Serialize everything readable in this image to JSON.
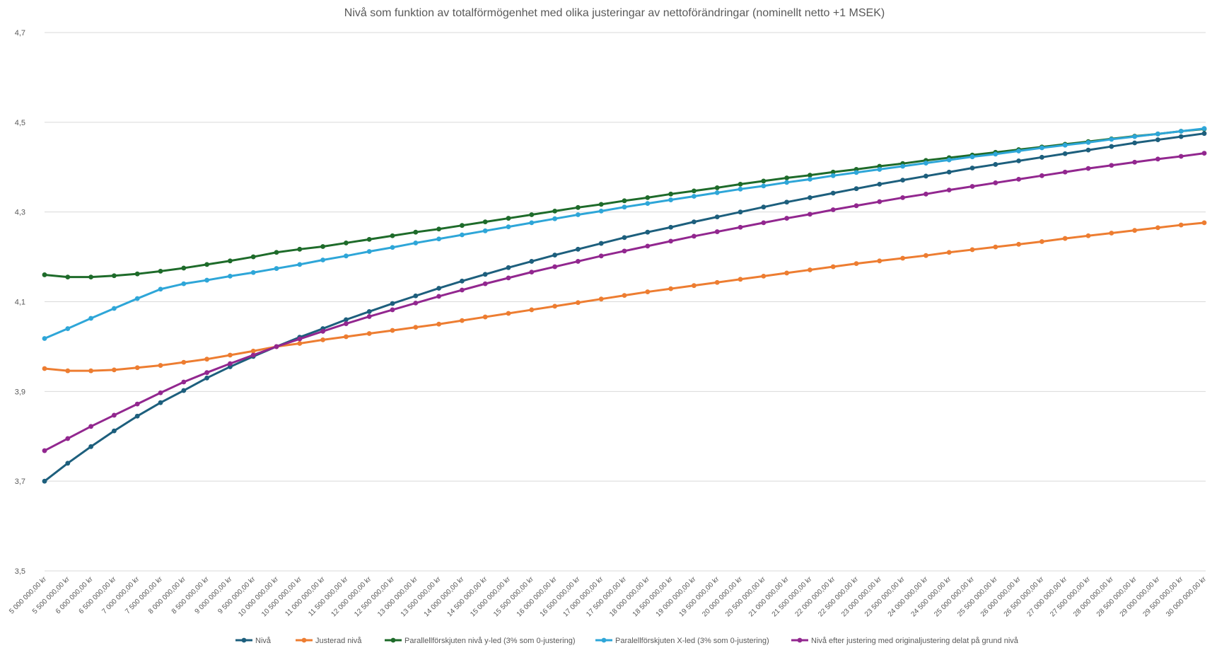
{
  "chart_data": {
    "type": "line",
    "title": "Nivå som funktion av totalförmögenhet med olika justeringar av nettoförändringar (nominellt netto +1 MSEK)",
    "ylim": [
      3.5,
      4.7
    ],
    "yticks": [
      "3,5",
      "3,7",
      "3,9",
      "4,1",
      "4,3",
      "4,5",
      "4,7"
    ],
    "ytick_values": [
      3.5,
      3.7,
      3.9,
      4.1,
      4.3,
      4.5,
      4.7
    ],
    "grid": true,
    "legend_position": "bottom",
    "categories": [
      "5 000 000,00 kr",
      "5 500 000,00 kr",
      "6 000 000,00 kr",
      "6 500 000,00 kr",
      "7 000 000,00 kr",
      "7 500 000,00 kr",
      "8 000 000,00 kr",
      "8 500 000,00 kr",
      "9 000 000,00 kr",
      "9 500 000,00 kr",
      "10 000 000,00 kr",
      "10 500 000,00 kr",
      "11 000 000,00 kr",
      "11 500 000,00 kr",
      "12 000 000,00 kr",
      "12 500 000,00 kr",
      "13 000 000,00 kr",
      "13 500 000,00 kr",
      "14 000 000,00 kr",
      "14 500 000,00 kr",
      "15 000 000,00 kr",
      "15 500 000,00 kr",
      "16 000 000,00 kr",
      "16 500 000,00 kr",
      "17 000 000,00 kr",
      "17 500 000,00 kr",
      "18 000 000,00 kr",
      "18 500 000,00 kr",
      "19 000 000,00 kr",
      "19 500 000,00 kr",
      "20 000 000,00 kr",
      "20 500 000,00 kr",
      "21 000 000,00 kr",
      "21 500 000,00 kr",
      "22 000 000,00 kr",
      "22 500 000,00 kr",
      "23 000 000,00 kr",
      "23 500 000,00 kr",
      "24 000 000,00 kr",
      "24 500 000,00 kr",
      "25 000 000,00 kr",
      "25 500 000,00 kr",
      "26 000 000,00 kr",
      "26 500 000,00 kr",
      "27 000 000,00 kr",
      "27 500 000,00 kr",
      "28 000 000,00 kr",
      "28 500 000,00 kr",
      "29 000 000,00 kr",
      "29 500 000,00 kr",
      "30 000 000,00 kr"
    ],
    "series": [
      {
        "name": "Nivå",
        "color": "#1d5f7d",
        "values": [
          3.7,
          3.74,
          3.777,
          3.812,
          3.845,
          3.875,
          3.902,
          3.93,
          3.955,
          3.978,
          4.0,
          4.021,
          4.04,
          4.06,
          4.078,
          4.096,
          4.113,
          4.13,
          4.146,
          4.161,
          4.176,
          4.19,
          4.204,
          4.217,
          4.23,
          4.243,
          4.255,
          4.266,
          4.278,
          4.289,
          4.3,
          4.311,
          4.322,
          4.332,
          4.342,
          4.352,
          4.362,
          4.371,
          4.38,
          4.389,
          4.398,
          4.406,
          4.414,
          4.422,
          4.43,
          4.438,
          4.446,
          4.454,
          4.461,
          4.468,
          4.475
        ]
      },
      {
        "name": "Justerad nivå",
        "color": "#ed7d31",
        "values": [
          3.951,
          3.946,
          3.946,
          3.948,
          3.953,
          3.958,
          3.965,
          3.972,
          3.981,
          3.99,
          4.0,
          4.007,
          4.015,
          4.022,
          4.029,
          4.036,
          4.043,
          4.05,
          4.058,
          4.066,
          4.074,
          4.082,
          4.09,
          4.098,
          4.106,
          4.114,
          4.122,
          4.129,
          4.136,
          4.143,
          4.15,
          4.157,
          4.164,
          4.171,
          4.178,
          4.185,
          4.191,
          4.197,
          4.203,
          4.21,
          4.216,
          4.222,
          4.228,
          4.234,
          4.241,
          4.247,
          4.253,
          4.259,
          4.265,
          4.271,
          4.276
        ]
      },
      {
        "name": "Parallellförskjuten nivå y-led (3% som 0-justering)",
        "color": "#1e6b2a",
        "values": [
          4.16,
          4.155,
          4.155,
          4.158,
          4.162,
          4.168,
          4.175,
          4.183,
          4.191,
          4.2,
          4.21,
          4.217,
          4.223,
          4.231,
          4.239,
          4.247,
          4.255,
          4.262,
          4.27,
          4.278,
          4.286,
          4.294,
          4.302,
          4.31,
          4.317,
          4.325,
          4.332,
          4.34,
          4.347,
          4.354,
          4.362,
          4.369,
          4.376,
          4.382,
          4.389,
          4.395,
          4.402,
          4.408,
          4.415,
          4.421,
          4.427,
          4.433,
          4.439,
          4.445,
          4.451,
          4.457,
          4.463,
          4.469,
          4.474,
          4.48,
          4.485
        ]
      },
      {
        "name": "Paralellförskjuten X-led (3% som 0-justering)",
        "color": "#2ea6d8",
        "values": [
          4.018,
          4.04,
          4.063,
          4.085,
          4.107,
          4.128,
          4.14,
          4.148,
          4.157,
          4.165,
          4.174,
          4.183,
          4.193,
          4.202,
          4.212,
          4.221,
          4.231,
          4.24,
          4.249,
          4.258,
          4.267,
          4.276,
          4.285,
          4.294,
          4.302,
          4.311,
          4.319,
          4.327,
          4.335,
          4.343,
          4.351,
          4.358,
          4.366,
          4.373,
          4.381,
          4.388,
          4.395,
          4.402,
          4.409,
          4.416,
          4.423,
          4.429,
          4.436,
          4.443,
          4.449,
          4.455,
          4.462,
          4.468,
          4.474,
          4.48,
          4.486
        ]
      },
      {
        "name": "Nivå efter justering med originaljustering delat på grund nivå",
        "color": "#92278f",
        "values": [
          3.768,
          3.795,
          3.822,
          3.847,
          3.872,
          3.897,
          3.921,
          3.942,
          3.962,
          3.981,
          4.0,
          4.017,
          4.034,
          4.051,
          4.067,
          4.082,
          4.097,
          4.112,
          4.126,
          4.14,
          4.153,
          4.166,
          4.178,
          4.19,
          4.202,
          4.213,
          4.224,
          4.235,
          4.246,
          4.256,
          4.266,
          4.276,
          4.286,
          4.295,
          4.305,
          4.314,
          4.323,
          4.332,
          4.34,
          4.349,
          4.357,
          4.365,
          4.373,
          4.381,
          4.389,
          4.397,
          4.404,
          4.411,
          4.418,
          4.424,
          4.431
        ]
      }
    ]
  }
}
